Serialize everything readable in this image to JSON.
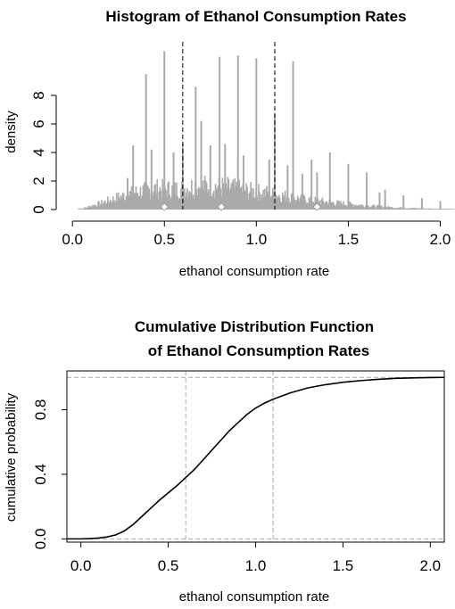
{
  "chart_data": [
    {
      "type": "histogram",
      "title": "Histogram of Ethanol Consumption Rates",
      "xlabel": "ethanol consumption rate",
      "ylabel": "density",
      "xlim": [
        -0.03,
        2.08
      ],
      "ylim": [
        0,
        10
      ],
      "x_ticks": [
        0.0,
        0.5,
        1.0,
        1.5,
        2.0
      ],
      "x_tick_labels": [
        "0.0",
        "0.5",
        "1.0",
        "1.5",
        "2.0"
      ],
      "y_ticks": [
        0,
        2,
        4,
        6,
        8
      ],
      "y_tick_labels": [
        "0",
        "2",
        "4",
        "6",
        "8"
      ],
      "bar_color": "#aaaaaa",
      "reference_lines_x": [
        0.6,
        1.1
      ],
      "reference_line_style": "black dashed",
      "envelope": [
        [
          0.05,
          0.1
        ],
        [
          0.15,
          0.6
        ],
        [
          0.25,
          1.2
        ],
        [
          0.35,
          1.7
        ],
        [
          0.45,
          2.0
        ],
        [
          0.55,
          1.9
        ],
        [
          0.65,
          2.2
        ],
        [
          0.75,
          2.3
        ],
        [
          0.85,
          2.1
        ],
        [
          0.95,
          1.8
        ],
        [
          1.05,
          1.6
        ],
        [
          1.15,
          1.3
        ],
        [
          1.25,
          1.0
        ],
        [
          1.35,
          0.8
        ],
        [
          1.45,
          0.6
        ],
        [
          1.55,
          0.45
        ],
        [
          1.65,
          0.3
        ],
        [
          1.75,
          0.2
        ],
        [
          1.85,
          0.12
        ],
        [
          1.95,
          0.08
        ],
        [
          2.05,
          0.05
        ]
      ],
      "spikes": [
        {
          "x": 0.3,
          "y": 2.2
        },
        {
          "x": 0.33,
          "y": 4.5
        },
        {
          "x": 0.4,
          "y": 9.5
        },
        {
          "x": 0.43,
          "y": 4.2
        },
        {
          "x": 0.5,
          "y": 11.1
        },
        {
          "x": 0.55,
          "y": 4.0
        },
        {
          "x": 0.6,
          "y": 4.6
        },
        {
          "x": 0.67,
          "y": 8.6
        },
        {
          "x": 0.7,
          "y": 6.2
        },
        {
          "x": 0.75,
          "y": 4.5
        },
        {
          "x": 0.8,
          "y": 10.7
        },
        {
          "x": 0.83,
          "y": 4.6
        },
        {
          "x": 0.9,
          "y": 10.8
        },
        {
          "x": 0.93,
          "y": 3.8
        },
        {
          "x": 1.0,
          "y": 10.6
        },
        {
          "x": 1.07,
          "y": 3.5
        },
        {
          "x": 1.1,
          "y": 6.7
        },
        {
          "x": 1.17,
          "y": 3.1
        },
        {
          "x": 1.2,
          "y": 10.4
        },
        {
          "x": 1.25,
          "y": 2.5
        },
        {
          "x": 1.3,
          "y": 3.5
        },
        {
          "x": 1.33,
          "y": 2.6
        },
        {
          "x": 1.4,
          "y": 4.0
        },
        {
          "x": 1.5,
          "y": 3.2
        },
        {
          "x": 1.6,
          "y": 2.6
        },
        {
          "x": 1.67,
          "y": 1.2
        },
        {
          "x": 1.7,
          "y": 1.4
        },
        {
          "x": 1.8,
          "y": 1.0
        },
        {
          "x": 1.9,
          "y": 0.8
        },
        {
          "x": 2.0,
          "y": 0.6
        }
      ],
      "diamonds_x": [
        0.5,
        0.81,
        1.33
      ]
    },
    {
      "type": "line",
      "title": "Cumulative Distribution Function",
      "subtitle": "of Ethanol Consumption Rates",
      "xlabel": "ethanol consumption rate",
      "ylabel": "cumulative probability",
      "xlim": [
        -0.08,
        2.08
      ],
      "ylim": [
        -0.02,
        1.04
      ],
      "x_ticks": [
        0.0,
        0.5,
        1.0,
        1.5,
        2.0
      ],
      "x_tick_labels": [
        "0.0",
        "0.5",
        "1.0",
        "1.5",
        "2.0"
      ],
      "y_ticks": [
        0.0,
        0.4,
        0.8
      ],
      "y_tick_labels": [
        "0.0",
        "0.4",
        "0.8"
      ],
      "box": true,
      "reference_lines_x": [
        0.6,
        1.1
      ],
      "reference_lines_y": [
        0.0,
        1.0
      ],
      "reference_line_style": "gray dashed",
      "x": [
        -0.08,
        0.0,
        0.05,
        0.1,
        0.15,
        0.2,
        0.25,
        0.3,
        0.35,
        0.4,
        0.45,
        0.5,
        0.55,
        0.6,
        0.65,
        0.7,
        0.75,
        0.8,
        0.85,
        0.9,
        0.95,
        1.0,
        1.05,
        1.1,
        1.15,
        1.2,
        1.3,
        1.4,
        1.5,
        1.6,
        1.7,
        1.8,
        1.9,
        2.0,
        2.08
      ],
      "y": [
        0.0,
        0.0,
        0.002,
        0.005,
        0.012,
        0.025,
        0.05,
        0.09,
        0.14,
        0.19,
        0.24,
        0.285,
        0.33,
        0.38,
        0.43,
        0.49,
        0.55,
        0.61,
        0.67,
        0.72,
        0.77,
        0.81,
        0.84,
        0.865,
        0.885,
        0.905,
        0.935,
        0.955,
        0.97,
        0.98,
        0.988,
        0.994,
        0.997,
        0.999,
        1.0
      ]
    }
  ]
}
